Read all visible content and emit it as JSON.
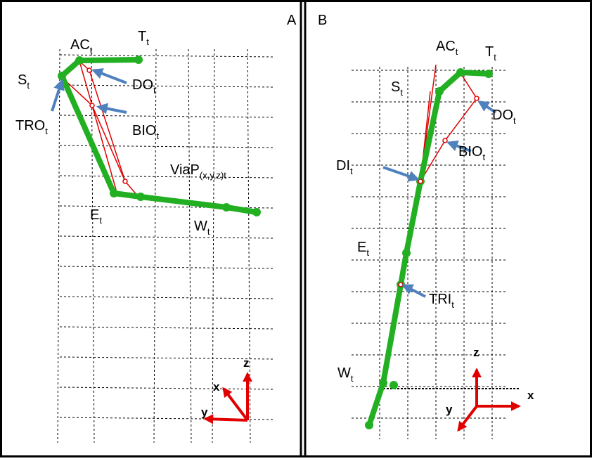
{
  "panels": [
    {
      "letter": "A",
      "labels": [
        {
          "main": "AC",
          "sub": "t"
        },
        {
          "main": "T",
          "sub": "t"
        },
        {
          "main": "S",
          "sub": "t"
        },
        {
          "main": "DO",
          "sub": "t"
        },
        {
          "main": "TRO",
          "sub": "t"
        },
        {
          "main": "BIO",
          "sub": "t"
        },
        {
          "main": "ViaP",
          "sub": "(x,y,z)t"
        },
        {
          "main": "E",
          "sub": "t"
        },
        {
          "main": "W",
          "sub": "t"
        }
      ],
      "axes": {
        "x": "x",
        "y": "y",
        "z": "z"
      }
    },
    {
      "letter": "B",
      "labels": [
        {
          "main": "AC",
          "sub": "t"
        },
        {
          "main": "T",
          "sub": "t"
        },
        {
          "main": "S",
          "sub": "t"
        },
        {
          "main": "DO",
          "sub": "t"
        },
        {
          "main": "DI",
          "sub": "t"
        },
        {
          "main": "BIO",
          "sub": "t"
        },
        {
          "main": "E",
          "sub": "t"
        },
        {
          "main": "TRI",
          "sub": "t"
        },
        {
          "main": "W",
          "sub": "t"
        }
      ],
      "axes": {
        "x": "x",
        "y": "y",
        "z": "z"
      }
    }
  ]
}
